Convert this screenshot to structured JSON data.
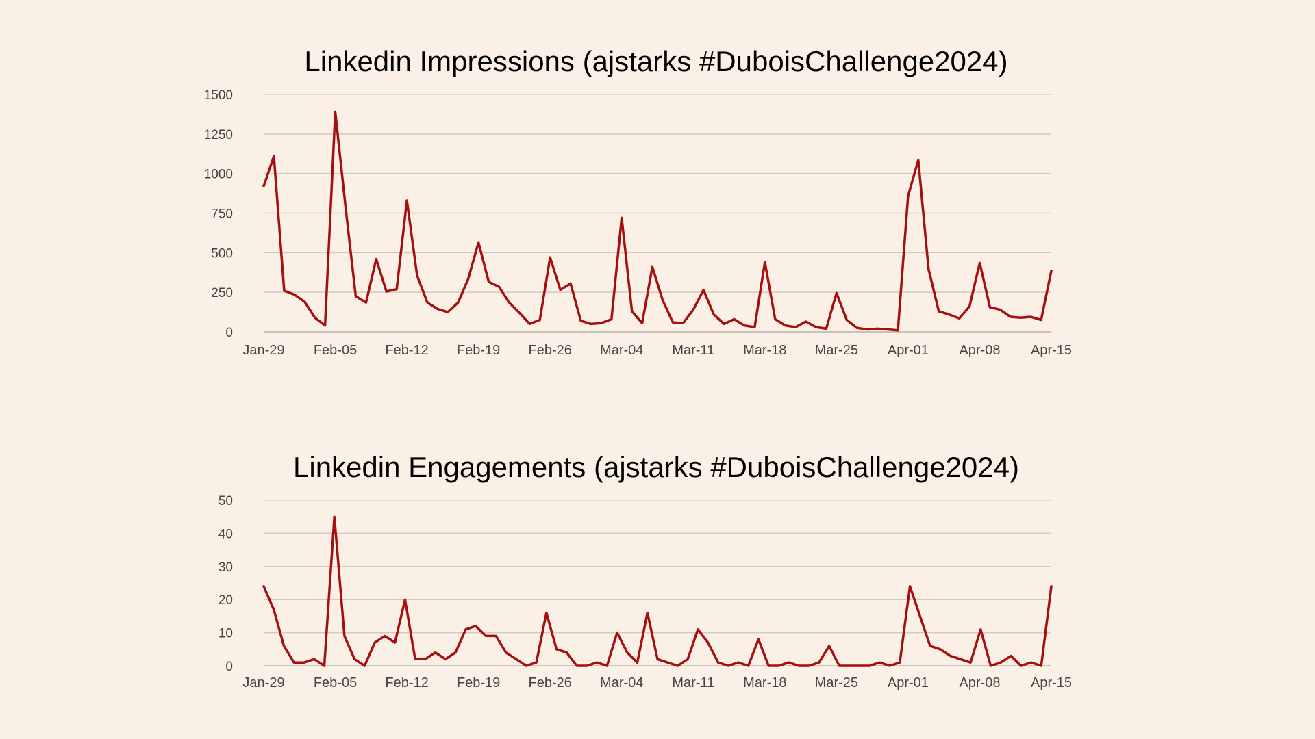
{
  "background_color": "#faf0e6",
  "line_color": "#a50f0f",
  "chart_data": [
    {
      "type": "line",
      "title": "Linkedin Impressions (ajstarks #DuboisChallenge2024)",
      "xlabel": "",
      "ylabel": "",
      "ylim": [
        0,
        1500
      ],
      "yticks": [
        "0",
        "250",
        "500",
        "750",
        "1000",
        "1250",
        "1500"
      ],
      "xticks": [
        "Jan-29",
        "Feb-05",
        "Feb-12",
        "Feb-19",
        "Feb-26",
        "Mar-04",
        "Mar-11",
        "Mar-18",
        "Mar-25",
        "Apr-01",
        "Apr-08",
        "Apr-15"
      ],
      "x_start": "Jan-29",
      "x_end": "Apr-15",
      "grid": true,
      "legend": "none",
      "series": [
        {
          "values": [
            920,
            1110,
            260,
            235,
            190,
            90,
            40,
            1390,
            790,
            225,
            185,
            460,
            255,
            270,
            830,
            355,
            185,
            145,
            125,
            185,
            335,
            565,
            315,
            285,
            185,
            120,
            50,
            75,
            470,
            265,
            305,
            70,
            50,
            55,
            80,
            720,
            130,
            55,
            410,
            200,
            60,
            55,
            140,
            265,
            110,
            50,
            80,
            40,
            30,
            440,
            80,
            40,
            30,
            65,
            30,
            20,
            245,
            75,
            25,
            15,
            20,
            15,
            10,
            860,
            1085,
            395,
            130,
            110,
            85,
            160,
            435,
            155,
            140,
            95,
            90,
            95,
            75,
            385
          ]
        }
      ]
    },
    {
      "type": "line",
      "title": "Linkedin Engagements (ajstarks #DuboisChallenge2024)",
      "xlabel": "",
      "ylabel": "",
      "ylim": [
        0,
        50
      ],
      "yticks": [
        "0",
        "10",
        "20",
        "30",
        "40",
        "50"
      ],
      "xticks": [
        "Jan-29",
        "Feb-05",
        "Feb-12",
        "Feb-19",
        "Feb-26",
        "Mar-04",
        "Mar-11",
        "Mar-18",
        "Mar-25",
        "Apr-01",
        "Apr-08",
        "Apr-15"
      ],
      "x_start": "Jan-29",
      "x_end": "Apr-15",
      "grid": true,
      "legend": "none",
      "series": [
        {
          "values": [
            24,
            17,
            6,
            1,
            1,
            2,
            0,
            45,
            9,
            2,
            0,
            7,
            9,
            7,
            20,
            2,
            2,
            4,
            2,
            4,
            11,
            12,
            9,
            9,
            4,
            2,
            0,
            1,
            16,
            5,
            4,
            0,
            0,
            1,
            0,
            10,
            4,
            1,
            16,
            2,
            1,
            0,
            2,
            11,
            7,
            1,
            0,
            1,
            0,
            8,
            0,
            0,
            1,
            0,
            0,
            1,
            6,
            0,
            0,
            0,
            0,
            1,
            0,
            1,
            24,
            15,
            6,
            5,
            3,
            2,
            1,
            11,
            0,
            1,
            3,
            0,
            1,
            0,
            24
          ]
        }
      ]
    }
  ]
}
